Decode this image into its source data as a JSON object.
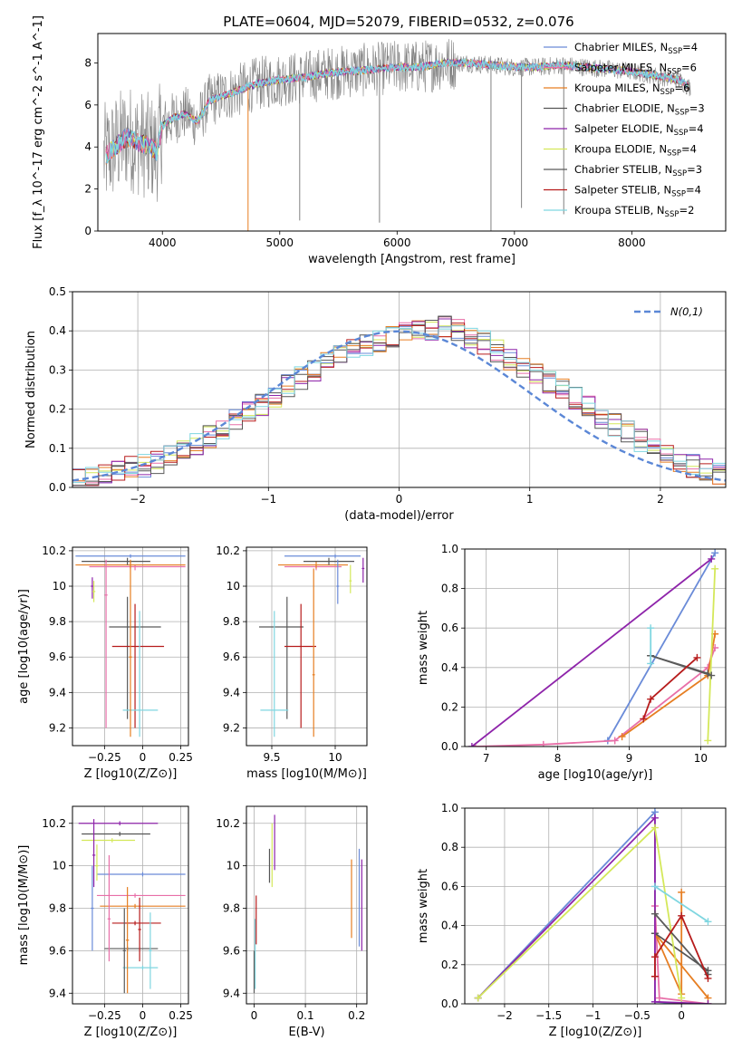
{
  "title": "PLATE=0604, MJD=52079, FIBERID=0532, z=0.076",
  "colors": [
    "#6a8bd8",
    "#e86fa8",
    "#e67e22",
    "#555555",
    "#8e24aa",
    "#d4e85a",
    "#5a5a5a",
    "#b71c1c",
    "#7fd6e0"
  ],
  "chart_data": [
    {
      "id": "spectrum",
      "type": "line",
      "xlabel": "wavelength [Angstrom, rest frame]",
      "ylabel": "Flux [f_λ 10^-17 erg cm^-2 s^-1 A^-1]",
      "xlim": [
        3450,
        8800
      ],
      "ylim": [
        0,
        9.4
      ],
      "xticks": [
        4000,
        5000,
        6000,
        7000,
        8000
      ],
      "yticks": [
        0,
        2,
        4,
        6,
        8
      ],
      "grid": false,
      "legend": "right",
      "data_color": "#808080",
      "model_x": [
        3500,
        3600,
        3700,
        3800,
        3900,
        3950,
        4000,
        4100,
        4200,
        4300,
        4400,
        4600,
        4800,
        5000,
        5200,
        5400,
        5600,
        5800,
        6000,
        6200,
        6400,
        6600,
        6800,
        7000,
        7200,
        7400,
        7600,
        7800,
        8000,
        8200,
        8400,
        8500
      ],
      "model_y": [
        3.5,
        4.0,
        4.5,
        4.2,
        4.0,
        3.8,
        5.0,
        5.4,
        5.6,
        5.2,
        6.2,
        6.6,
        7.0,
        7.2,
        7.3,
        7.5,
        7.6,
        7.7,
        7.8,
        7.8,
        8.0,
        8.0,
        7.9,
        7.8,
        7.8,
        7.9,
        7.8,
        7.7,
        7.6,
        7.4,
        7.2,
        6.8
      ],
      "series": [
        {
          "name": "Chabrier MILES, N_SSP=4"
        },
        {
          "name": "Salpeter MILES, N_SSP=6"
        },
        {
          "name": "Kroupa MILES, N_SSP=6"
        },
        {
          "name": "Chabrier ELODIE, N_SSP=3"
        },
        {
          "name": "Salpeter ELODIE, N_SSP=4"
        },
        {
          "name": "Kroupa ELODIE, N_SSP=4"
        },
        {
          "name": "Chabrier STELIB, N_SSP=3"
        },
        {
          "name": "Salpeter STELIB, N_SSP=4"
        },
        {
          "name": "Kroupa STELIB, N_SSP=2"
        }
      ]
    },
    {
      "id": "normed",
      "type": "line",
      "xlabel": "(data-model)/error",
      "ylabel": "Normed distribution",
      "xlim": [
        -2.5,
        2.5
      ],
      "ylim": [
        0,
        0.5
      ],
      "xticks": [
        -2,
        -1,
        0,
        1,
        2
      ],
      "yticks": [
        0.0,
        0.1,
        0.2,
        0.3,
        0.4,
        0.5
      ],
      "grid": true,
      "legend": "top-right",
      "reference": {
        "name": "N(0,1)",
        "color": "#5b87d6"
      },
      "bin_start": -2.5,
      "bin_width": 0.1,
      "hist_base": [
        0.02,
        0.025,
        0.03,
        0.04,
        0.05,
        0.055,
        0.065,
        0.08,
        0.09,
        0.11,
        0.13,
        0.15,
        0.17,
        0.19,
        0.21,
        0.235,
        0.26,
        0.28,
        0.3,
        0.32,
        0.34,
        0.35,
        0.36,
        0.375,
        0.385,
        0.395,
        0.4,
        0.405,
        0.41,
        0.4,
        0.385,
        0.37,
        0.35,
        0.33,
        0.31,
        0.29,
        0.27,
        0.25,
        0.23,
        0.205,
        0.18,
        0.16,
        0.145,
        0.12,
        0.1,
        0.085,
        0.07,
        0.055,
        0.045,
        0.035
      ]
    },
    {
      "id": "age-vs-Z",
      "type": "scatter",
      "xlabel": "Z [log10(Z/Z⊙)]",
      "ylabel": "age  [log10(age/yr)]",
      "xlim": [
        -0.46,
        0.3
      ],
      "ylim": [
        9.1,
        10.22
      ],
      "xticks": [
        -0.25,
        0.0,
        0.25
      ],
      "yticks": [
        9.2,
        9.4,
        9.6,
        9.8,
        10.0,
        10.2
      ],
      "points": [
        {
          "x": -0.08,
          "y": 10.17,
          "xlo": -0.44,
          "xhi": 0.28,
          "ylo": 10.16,
          "yhi": 10.18,
          "c": 0
        },
        {
          "x": -0.05,
          "y": 10.11,
          "xlo": -0.35,
          "xhi": 0.28,
          "ylo": 10.09,
          "yhi": 10.12,
          "c": 1
        },
        {
          "x": -0.08,
          "y": 10.12,
          "xlo": -0.44,
          "xhi": 0.28,
          "ylo": 10.1,
          "yhi": 10.14,
          "c": 2
        },
        {
          "x": -0.1,
          "y": 10.14,
          "xlo": -0.4,
          "xhi": 0.05,
          "ylo": 10.12,
          "yhi": 10.16,
          "c": 3
        },
        {
          "x": -0.33,
          "y": 10.0,
          "xlo": -0.34,
          "xhi": -0.32,
          "ylo": 9.93,
          "yhi": 10.05,
          "c": 4
        },
        {
          "x": -0.32,
          "y": 9.97,
          "xlo": -0.33,
          "xhi": -0.31,
          "ylo": 9.91,
          "yhi": 10.03,
          "c": 5
        },
        {
          "x": -0.1,
          "y": 9.77,
          "xlo": -0.22,
          "xhi": 0.12,
          "ylo": 9.25,
          "yhi": 9.94,
          "c": 6
        },
        {
          "x": -0.05,
          "y": 9.66,
          "xlo": -0.2,
          "xhi": 0.14,
          "ylo": 9.2,
          "yhi": 9.9,
          "c": 7
        },
        {
          "x": -0.02,
          "y": 9.3,
          "xlo": -0.13,
          "xhi": 0.1,
          "ylo": 9.15,
          "yhi": 9.86,
          "c": 8
        },
        {
          "x": -0.24,
          "y": 9.95,
          "xlo": -0.25,
          "xhi": -0.23,
          "ylo": 9.2,
          "yhi": 10.15,
          "c": 1
        },
        {
          "x": -0.08,
          "y": 9.6,
          "xlo": -0.09,
          "xhi": -0.07,
          "ylo": 9.15,
          "yhi": 10.15,
          "c": 2
        }
      ]
    },
    {
      "id": "age-vs-mass",
      "type": "scatter",
      "xlabel": "mass [log10(M/M⊙)]",
      "ylabel": "",
      "xlim": [
        9.3,
        10.25
      ],
      "ylim": [
        9.1,
        10.22
      ],
      "xticks": [
        9.5,
        10.0
      ],
      "yticks": [
        9.2,
        9.4,
        9.6,
        9.8,
        10.0,
        10.2
      ],
      "points": [
        {
          "x": 10.0,
          "y": 10.17,
          "xlo": 9.6,
          "xhi": 10.2,
          "ylo": 10.16,
          "yhi": 10.18,
          "c": 0
        },
        {
          "x": 9.85,
          "y": 10.11,
          "xlo": 9.6,
          "xhi": 10.05,
          "ylo": 10.09,
          "yhi": 10.12,
          "c": 1
        },
        {
          "x": 9.85,
          "y": 10.12,
          "xlo": 9.55,
          "xhi": 10.1,
          "ylo": 10.1,
          "yhi": 10.14,
          "c": 2
        },
        {
          "x": 9.95,
          "y": 10.14,
          "xlo": 9.75,
          "xhi": 10.15,
          "ylo": 10.12,
          "yhi": 10.16,
          "c": 3
        },
        {
          "x": 10.22,
          "y": 10.1,
          "xlo": 10.21,
          "xhi": 10.23,
          "ylo": 10.02,
          "yhi": 10.16,
          "c": 4
        },
        {
          "x": 10.12,
          "y": 10.03,
          "xlo": 10.11,
          "xhi": 10.13,
          "ylo": 9.96,
          "yhi": 10.12,
          "c": 5
        },
        {
          "x": 9.62,
          "y": 9.77,
          "xlo": 9.4,
          "xhi": 9.75,
          "ylo": 9.25,
          "yhi": 9.94,
          "c": 6
        },
        {
          "x": 9.73,
          "y": 9.66,
          "xlo": 9.6,
          "xhi": 9.85,
          "ylo": 9.2,
          "yhi": 9.9,
          "c": 7
        },
        {
          "x": 9.52,
          "y": 9.3,
          "xlo": 9.41,
          "xhi": 9.63,
          "ylo": 9.15,
          "yhi": 9.86,
          "c": 8
        },
        {
          "x": 10.02,
          "y": 10.0,
          "xlo": 10.01,
          "xhi": 10.03,
          "ylo": 9.9,
          "yhi": 10.15,
          "c": 0
        },
        {
          "x": 9.83,
          "y": 9.5,
          "xlo": 9.82,
          "xhi": 9.84,
          "ylo": 9.15,
          "yhi": 10.1,
          "c": 2
        }
      ]
    },
    {
      "id": "weight-vs-age",
      "type": "line",
      "xlabel": "age  [log10(age/yr)]",
      "ylabel": "mass weight",
      "xlim": [
        6.7,
        10.35
      ],
      "ylim": [
        0,
        1
      ],
      "xticks": [
        7,
        8,
        9,
        10
      ],
      "yticks": [
        0.0,
        0.2,
        0.4,
        0.6,
        0.8,
        1.0
      ],
      "grid": true,
      "lines": [
        {
          "c": 0,
          "pts": [
            [
              8.7,
              0.03
            ],
            [
              10.2,
              0.98
            ]
          ]
        },
        {
          "c": 1,
          "pts": [
            [
              6.85,
              0.0
            ],
            [
              7.8,
              0.01
            ],
            [
              8.8,
              0.03
            ],
            [
              10.1,
              0.4
            ],
            [
              10.2,
              0.5
            ]
          ]
        },
        {
          "c": 2,
          "pts": [
            [
              8.9,
              0.05
            ],
            [
              10.1,
              0.36
            ],
            [
              10.2,
              0.57
            ]
          ]
        },
        {
          "c": 3,
          "pts": [
            [
              9.3,
              0.46
            ],
            [
              10.1,
              0.37
            ]
          ]
        },
        {
          "c": 4,
          "pts": [
            [
              6.8,
              0.0
            ],
            [
              10.15,
              0.95
            ]
          ]
        },
        {
          "c": 5,
          "pts": [
            [
              10.1,
              0.03
            ],
            [
              10.2,
              0.9
            ]
          ]
        },
        {
          "c": 6,
          "pts": [
            [
              9.3,
              0.46
            ],
            [
              10.15,
              0.36
            ]
          ]
        },
        {
          "c": 7,
          "pts": [
            [
              9.2,
              0.14
            ],
            [
              9.3,
              0.24
            ],
            [
              9.95,
              0.45
            ]
          ]
        },
        {
          "c": 8,
          "pts": [
            [
              9.3,
              0.6
            ],
            [
              9.3,
              0.42
            ]
          ]
        }
      ]
    },
    {
      "id": "mass-vs-Z",
      "type": "scatter",
      "xlabel": "Z [log10(Z/Z⊙)]",
      "ylabel": "mass [log10(M/M⊙)]",
      "xlim": [
        -0.46,
        0.3
      ],
      "ylim": [
        9.35,
        10.28
      ],
      "xticks": [
        -0.25,
        0.0,
        0.25
      ],
      "yticks": [
        9.4,
        9.6,
        9.8,
        10.0,
        10.2
      ],
      "points": [
        {
          "x": 0.0,
          "y": 9.96,
          "xlo": -0.3,
          "xhi": 0.28,
          "ylo": 9.95,
          "yhi": 9.97,
          "c": 0
        },
        {
          "x": -0.05,
          "y": 9.86,
          "xlo": -0.3,
          "xhi": 0.28,
          "ylo": 9.85,
          "yhi": 9.87,
          "c": 1
        },
        {
          "x": -0.05,
          "y": 9.81,
          "xlo": -0.28,
          "xhi": 0.28,
          "ylo": 9.8,
          "yhi": 9.82,
          "c": 2
        },
        {
          "x": -0.15,
          "y": 10.15,
          "xlo": -0.4,
          "xhi": 0.05,
          "ylo": 10.14,
          "yhi": 10.16,
          "c": 3
        },
        {
          "x": -0.15,
          "y": 10.2,
          "xlo": -0.42,
          "xhi": 0.1,
          "ylo": 10.19,
          "yhi": 10.21,
          "c": 4
        },
        {
          "x": -0.2,
          "y": 10.12,
          "xlo": -0.4,
          "xhi": -0.05,
          "ylo": 10.11,
          "yhi": 10.13,
          "c": 5
        },
        {
          "x": -0.1,
          "y": 9.61,
          "xlo": -0.25,
          "xhi": 0.1,
          "ylo": 9.6,
          "yhi": 9.62,
          "c": 6
        },
        {
          "x": -0.05,
          "y": 9.73,
          "xlo": -0.2,
          "xhi": 0.12,
          "ylo": 9.72,
          "yhi": 9.74,
          "c": 7
        },
        {
          "x": 0.0,
          "y": 9.52,
          "xlo": -0.13,
          "xhi": 0.1,
          "ylo": 9.51,
          "yhi": 9.53,
          "c": 8
        },
        {
          "x": -0.32,
          "y": 10.05,
          "xlo": -0.33,
          "xhi": -0.31,
          "ylo": 9.9,
          "yhi": 10.22,
          "c": 4
        },
        {
          "x": -0.3,
          "y": 10.0,
          "xlo": -0.31,
          "xhi": -0.29,
          "ylo": 9.93,
          "yhi": 10.1,
          "c": 5
        },
        {
          "x": -0.33,
          "y": 9.8,
          "xlo": -0.34,
          "xhi": -0.32,
          "ylo": 9.6,
          "yhi": 10.0,
          "c": 0
        },
        {
          "x": -0.22,
          "y": 9.75,
          "xlo": -0.23,
          "xhi": -0.21,
          "ylo": 9.55,
          "yhi": 10.05,
          "c": 1
        },
        {
          "x": -0.1,
          "y": 9.65,
          "xlo": -0.11,
          "xhi": -0.09,
          "ylo": 9.4,
          "yhi": 9.9,
          "c": 2
        },
        {
          "x": -0.12,
          "y": 9.6,
          "xlo": -0.13,
          "xhi": -0.11,
          "ylo": 9.4,
          "yhi": 9.8,
          "c": 6
        },
        {
          "x": -0.02,
          "y": 9.7,
          "xlo": -0.03,
          "xhi": -0.01,
          "ylo": 9.55,
          "yhi": 9.85,
          "c": 7
        },
        {
          "x": 0.05,
          "y": 9.6,
          "xlo": 0.04,
          "xhi": 0.06,
          "ylo": 9.42,
          "yhi": 9.78,
          "c": 8
        }
      ]
    },
    {
      "id": "ebv",
      "type": "scatter",
      "xlabel": "E(B-V)",
      "ylabel": "",
      "xlim": [
        -0.015,
        0.22
      ],
      "ylim": [
        9.35,
        10.28
      ],
      "xticks": [
        0.0,
        0.1,
        0.2
      ],
      "yticks": [
        9.4,
        9.6,
        9.8,
        10.0,
        10.2
      ],
      "points": [
        {
          "x": 0.04,
          "y": 10.1,
          "ylo": 9.98,
          "yhi": 10.24,
          "c": 4
        },
        {
          "x": 0.035,
          "y": 10.05,
          "ylo": 9.9,
          "yhi": 10.2,
          "c": 5
        },
        {
          "x": 0.03,
          "y": 10.0,
          "ylo": 9.92,
          "yhi": 10.08,
          "c": 3
        },
        {
          "x": 0.19,
          "y": 9.84,
          "ylo": 9.66,
          "yhi": 10.03,
          "c": 2
        },
        {
          "x": 0.205,
          "y": 9.84,
          "ylo": 9.62,
          "yhi": 10.08,
          "c": 0
        },
        {
          "x": 0.21,
          "y": 9.8,
          "ylo": 9.6,
          "yhi": 10.03,
          "c": 4
        },
        {
          "x": 0.002,
          "y": 9.6,
          "ylo": 9.42,
          "yhi": 9.75,
          "c": 8
        },
        {
          "x": 0.004,
          "y": 9.75,
          "ylo": 9.63,
          "yhi": 9.86,
          "c": 7
        },
        {
          "x": 0.0,
          "y": 9.5,
          "ylo": 9.4,
          "yhi": 9.6,
          "c": 6
        }
      ]
    },
    {
      "id": "weight-vs-Z",
      "type": "line",
      "xlabel": "Z [log10(Z/Z⊙)]",
      "ylabel": "mass weight",
      "xlim": [
        -2.45,
        0.5
      ],
      "ylim": [
        0,
        1
      ],
      "xticks": [
        -2.0,
        -1.5,
        -1.0,
        -0.5,
        0.0
      ],
      "yticks": [
        0.0,
        0.2,
        0.4,
        0.6,
        0.8,
        1.0
      ],
      "grid": true,
      "lines": [
        {
          "c": 0,
          "pts": [
            [
              -2.3,
              0.03
            ],
            [
              -0.3,
              0.98
            ],
            [
              -0.3,
              0.01
            ],
            [
              0.0,
              0.0
            ]
          ]
        },
        {
          "c": 1,
          "pts": [
            [
              -0.3,
              0.5
            ],
            [
              -0.25,
              0.03
            ],
            [
              0.3,
              0.0
            ]
          ]
        },
        {
          "c": 2,
          "pts": [
            [
              0.0,
              0.57
            ],
            [
              0.0,
              0.05
            ],
            [
              -0.3,
              0.36
            ],
            [
              0.3,
              0.03
            ]
          ]
        },
        {
          "c": 3,
          "pts": [
            [
              -0.3,
              0.36
            ],
            [
              0.3,
              0.17
            ]
          ]
        },
        {
          "c": 4,
          "pts": [
            [
              -2.3,
              0.03
            ],
            [
              -0.3,
              0.95
            ],
            [
              -0.3,
              0.01
            ],
            [
              0.3,
              0.0
            ]
          ]
        },
        {
          "c": 5,
          "pts": [
            [
              -2.3,
              0.03
            ],
            [
              -0.3,
              0.9
            ],
            [
              0.0,
              0.03
            ]
          ]
        },
        {
          "c": 6,
          "pts": [
            [
              -0.3,
              0.46
            ],
            [
              0.3,
              0.15
            ]
          ]
        },
        {
          "c": 7,
          "pts": [
            [
              -0.3,
              0.14
            ],
            [
              -0.3,
              0.24
            ],
            [
              0.0,
              0.45
            ],
            [
              0.3,
              0.13
            ]
          ]
        },
        {
          "c": 8,
          "pts": [
            [
              -0.3,
              0.6
            ],
            [
              0.3,
              0.42
            ]
          ]
        }
      ]
    }
  ]
}
